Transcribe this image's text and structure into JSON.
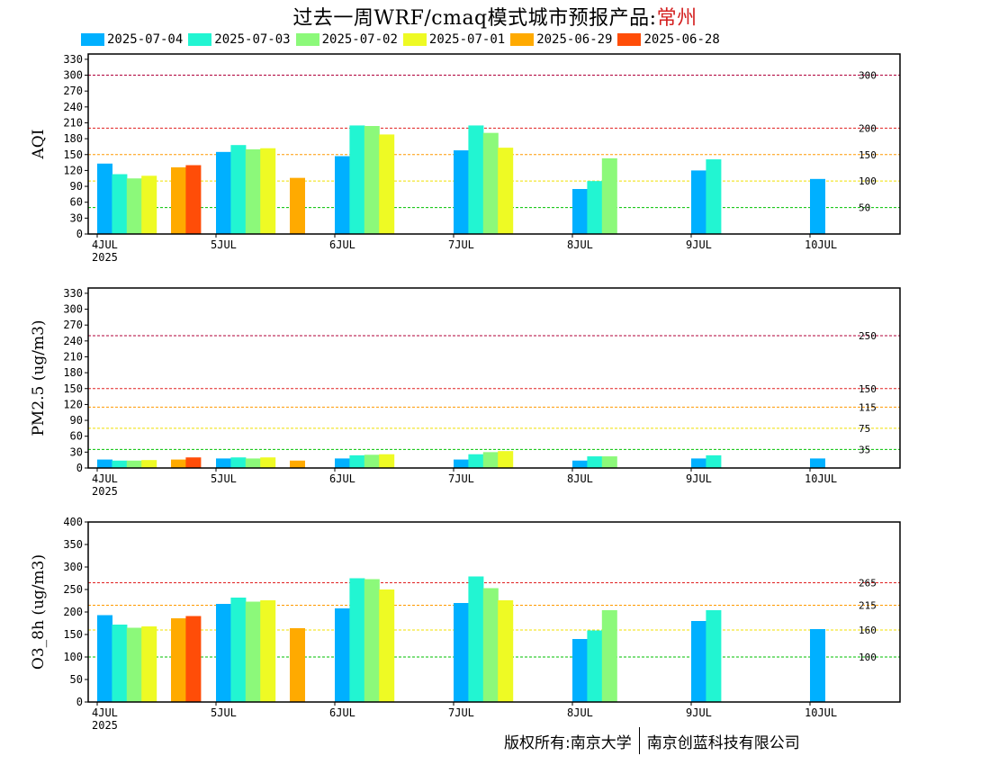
{
  "title": {
    "prefix": "过去一周WRF/cmaq模式城市预报产品:",
    "city": "常州",
    "city_color": "#d42020"
  },
  "legend": [
    {
      "label": "2025-07-04",
      "color": "#00b0ff"
    },
    {
      "label": "2025-07-03",
      "color": "#22f5d2"
    },
    {
      "label": "2025-07-02",
      "color": "#8cf97a"
    },
    {
      "label": "2025-07-01",
      "color": "#eefa24"
    },
    {
      "label": "2025-06-29",
      "color": "#ffaa00"
    },
    {
      "label": "2025-06-28",
      "color": "#ff4d08"
    }
  ],
  "footer": {
    "left": "版权所有:南京大学",
    "right": "南京创蓝科技有限公司"
  },
  "chart_data": [
    {
      "type": "bar",
      "ylabel": "AQI",
      "ylim": [
        0,
        340
      ],
      "yticks": [
        0,
        30,
        60,
        90,
        120,
        150,
        180,
        210,
        240,
        270,
        300,
        330
      ],
      "x_tick_labels": [
        "4JUL",
        "5JUL",
        "6JUL",
        "7JUL",
        "8JUL",
        "9JUL",
        "10JUL"
      ],
      "x_year_label": "2025",
      "thresholds": [
        {
          "value": 300,
          "label": "300",
          "color": "#b0003a"
        },
        {
          "value": 200,
          "label": "200",
          "color": "#e02020"
        },
        {
          "value": 150,
          "label": "150",
          "color": "#ff9900"
        },
        {
          "value": 100,
          "label": "100",
          "color": "#f0e000"
        },
        {
          "value": 50,
          "label": "50",
          "color": "#00c000"
        }
      ],
      "bars": [
        {
          "day": 0,
          "slot": 0,
          "series": "2025-07-04",
          "value": 133
        },
        {
          "day": 0,
          "slot": 1,
          "series": "2025-07-03",
          "value": 113
        },
        {
          "day": 0,
          "slot": 2,
          "series": "2025-07-02",
          "value": 105
        },
        {
          "day": 0,
          "slot": 3,
          "series": "2025-07-01",
          "value": 110
        },
        {
          "day": 0,
          "slot": 5,
          "series": "2025-06-29",
          "value": 126
        },
        {
          "day": 0,
          "slot": 6,
          "series": "2025-06-28",
          "value": 130
        },
        {
          "day": 1,
          "slot": 0,
          "series": "2025-07-04",
          "value": 155
        },
        {
          "day": 1,
          "slot": 1,
          "series": "2025-07-03",
          "value": 168
        },
        {
          "day": 1,
          "slot": 2,
          "series": "2025-07-02",
          "value": 160
        },
        {
          "day": 1,
          "slot": 3,
          "series": "2025-07-01",
          "value": 162
        },
        {
          "day": 1,
          "slot": 5,
          "series": "2025-06-29",
          "value": 106
        },
        {
          "day": 2,
          "slot": 0,
          "series": "2025-07-04",
          "value": 147
        },
        {
          "day": 2,
          "slot": 1,
          "series": "2025-07-03",
          "value": 205
        },
        {
          "day": 2,
          "slot": 2,
          "series": "2025-07-02",
          "value": 204
        },
        {
          "day": 2,
          "slot": 3,
          "series": "2025-07-01",
          "value": 188
        },
        {
          "day": 3,
          "slot": 0,
          "series": "2025-07-04",
          "value": 158
        },
        {
          "day": 3,
          "slot": 1,
          "series": "2025-07-03",
          "value": 205
        },
        {
          "day": 3,
          "slot": 2,
          "series": "2025-07-02",
          "value": 191
        },
        {
          "day": 3,
          "slot": 3,
          "series": "2025-07-01",
          "value": 163
        },
        {
          "day": 4,
          "slot": 0,
          "series": "2025-07-04",
          "value": 85
        },
        {
          "day": 4,
          "slot": 1,
          "series": "2025-07-03",
          "value": 100
        },
        {
          "day": 4,
          "slot": 2,
          "series": "2025-07-02",
          "value": 143
        },
        {
          "day": 5,
          "slot": 0,
          "series": "2025-07-04",
          "value": 120
        },
        {
          "day": 5,
          "slot": 1,
          "series": "2025-07-03",
          "value": 141
        },
        {
          "day": 6,
          "slot": 0,
          "series": "2025-07-04",
          "value": 104
        }
      ]
    },
    {
      "type": "bar",
      "ylabel": "PM2.5 (ug/m3)",
      "ylim": [
        0,
        340
      ],
      "yticks": [
        0,
        30,
        60,
        90,
        120,
        150,
        180,
        210,
        240,
        270,
        300,
        330
      ],
      "x_tick_labels": [
        "4JUL",
        "5JUL",
        "6JUL",
        "7JUL",
        "8JUL",
        "9JUL",
        "10JUL"
      ],
      "x_year_label": "2025",
      "thresholds": [
        {
          "value": 250,
          "label": "250",
          "color": "#b0003a"
        },
        {
          "value": 150,
          "label": "150",
          "color": "#e02020"
        },
        {
          "value": 115,
          "label": "115",
          "color": "#ff9900"
        },
        {
          "value": 75,
          "label": "75",
          "color": "#f0e000"
        },
        {
          "value": 35,
          "label": "35",
          "color": "#00c000"
        }
      ],
      "bars": [
        {
          "day": 0,
          "slot": 0,
          "series": "2025-07-04",
          "value": 16
        },
        {
          "day": 0,
          "slot": 1,
          "series": "2025-07-03",
          "value": 14
        },
        {
          "day": 0,
          "slot": 2,
          "series": "2025-07-02",
          "value": 14
        },
        {
          "day": 0,
          "slot": 3,
          "series": "2025-07-01",
          "value": 15
        },
        {
          "day": 0,
          "slot": 5,
          "series": "2025-06-29",
          "value": 16
        },
        {
          "day": 0,
          "slot": 6,
          "series": "2025-06-28",
          "value": 20
        },
        {
          "day": 1,
          "slot": 0,
          "series": "2025-07-04",
          "value": 18
        },
        {
          "day": 1,
          "slot": 1,
          "series": "2025-07-03",
          "value": 20
        },
        {
          "day": 1,
          "slot": 2,
          "series": "2025-07-02",
          "value": 18
        },
        {
          "day": 1,
          "slot": 3,
          "series": "2025-07-01",
          "value": 20
        },
        {
          "day": 1,
          "slot": 5,
          "series": "2025-06-29",
          "value": 14
        },
        {
          "day": 2,
          "slot": 0,
          "series": "2025-07-04",
          "value": 18
        },
        {
          "day": 2,
          "slot": 1,
          "series": "2025-07-03",
          "value": 24
        },
        {
          "day": 2,
          "slot": 2,
          "series": "2025-07-02",
          "value": 25
        },
        {
          "day": 2,
          "slot": 3,
          "series": "2025-07-01",
          "value": 26
        },
        {
          "day": 3,
          "slot": 0,
          "series": "2025-07-04",
          "value": 16
        },
        {
          "day": 3,
          "slot": 1,
          "series": "2025-07-03",
          "value": 26
        },
        {
          "day": 3,
          "slot": 2,
          "series": "2025-07-02",
          "value": 30
        },
        {
          "day": 3,
          "slot": 3,
          "series": "2025-07-01",
          "value": 32
        },
        {
          "day": 4,
          "slot": 0,
          "series": "2025-07-04",
          "value": 14
        },
        {
          "day": 4,
          "slot": 1,
          "series": "2025-07-03",
          "value": 22
        },
        {
          "day": 4,
          "slot": 2,
          "series": "2025-07-02",
          "value": 22
        },
        {
          "day": 5,
          "slot": 0,
          "series": "2025-07-04",
          "value": 18
        },
        {
          "day": 5,
          "slot": 1,
          "series": "2025-07-03",
          "value": 24
        },
        {
          "day": 6,
          "slot": 0,
          "series": "2025-07-04",
          "value": 18
        }
      ]
    },
    {
      "type": "bar",
      "ylabel": "O3_8h (ug/m3)",
      "ylim": [
        0,
        400
      ],
      "yticks": [
        0,
        50,
        100,
        150,
        200,
        250,
        300,
        350,
        400
      ],
      "x_tick_labels": [
        "4JUL",
        "5JUL",
        "6JUL",
        "7JUL",
        "8JUL",
        "9JUL",
        "10JUL"
      ],
      "x_year_label": "2025",
      "thresholds": [
        {
          "value": 265,
          "label": "265",
          "color": "#e02020"
        },
        {
          "value": 215,
          "label": "215",
          "color": "#ff9900"
        },
        {
          "value": 160,
          "label": "160",
          "color": "#f0e000"
        },
        {
          "value": 100,
          "label": "100",
          "color": "#00c000"
        }
      ],
      "bars": [
        {
          "day": 0,
          "slot": 0,
          "series": "2025-07-04",
          "value": 193
        },
        {
          "day": 0,
          "slot": 1,
          "series": "2025-07-03",
          "value": 172
        },
        {
          "day": 0,
          "slot": 2,
          "series": "2025-07-02",
          "value": 165
        },
        {
          "day": 0,
          "slot": 3,
          "series": "2025-07-01",
          "value": 168
        },
        {
          "day": 0,
          "slot": 5,
          "series": "2025-06-29",
          "value": 186
        },
        {
          "day": 0,
          "slot": 6,
          "series": "2025-06-28",
          "value": 191
        },
        {
          "day": 1,
          "slot": 0,
          "series": "2025-07-04",
          "value": 218
        },
        {
          "day": 1,
          "slot": 1,
          "series": "2025-07-03",
          "value": 232
        },
        {
          "day": 1,
          "slot": 2,
          "series": "2025-07-02",
          "value": 223
        },
        {
          "day": 1,
          "slot": 3,
          "series": "2025-07-01",
          "value": 226
        },
        {
          "day": 1,
          "slot": 5,
          "series": "2025-06-29",
          "value": 164
        },
        {
          "day": 2,
          "slot": 0,
          "series": "2025-07-04",
          "value": 208
        },
        {
          "day": 2,
          "slot": 1,
          "series": "2025-07-03",
          "value": 275
        },
        {
          "day": 2,
          "slot": 2,
          "series": "2025-07-02",
          "value": 273
        },
        {
          "day": 2,
          "slot": 3,
          "series": "2025-07-01",
          "value": 250
        },
        {
          "day": 3,
          "slot": 0,
          "series": "2025-07-04",
          "value": 220
        },
        {
          "day": 3,
          "slot": 1,
          "series": "2025-07-03",
          "value": 279
        },
        {
          "day": 3,
          "slot": 2,
          "series": "2025-07-02",
          "value": 253
        },
        {
          "day": 3,
          "slot": 3,
          "series": "2025-07-01",
          "value": 226
        },
        {
          "day": 4,
          "slot": 0,
          "series": "2025-07-04",
          "value": 140
        },
        {
          "day": 4,
          "slot": 1,
          "series": "2025-07-03",
          "value": 159
        },
        {
          "day": 4,
          "slot": 2,
          "series": "2025-07-02",
          "value": 204
        },
        {
          "day": 5,
          "slot": 0,
          "series": "2025-07-04",
          "value": 180
        },
        {
          "day": 5,
          "slot": 1,
          "series": "2025-07-03",
          "value": 204
        },
        {
          "day": 6,
          "slot": 0,
          "series": "2025-07-04",
          "value": 162
        }
      ]
    }
  ]
}
